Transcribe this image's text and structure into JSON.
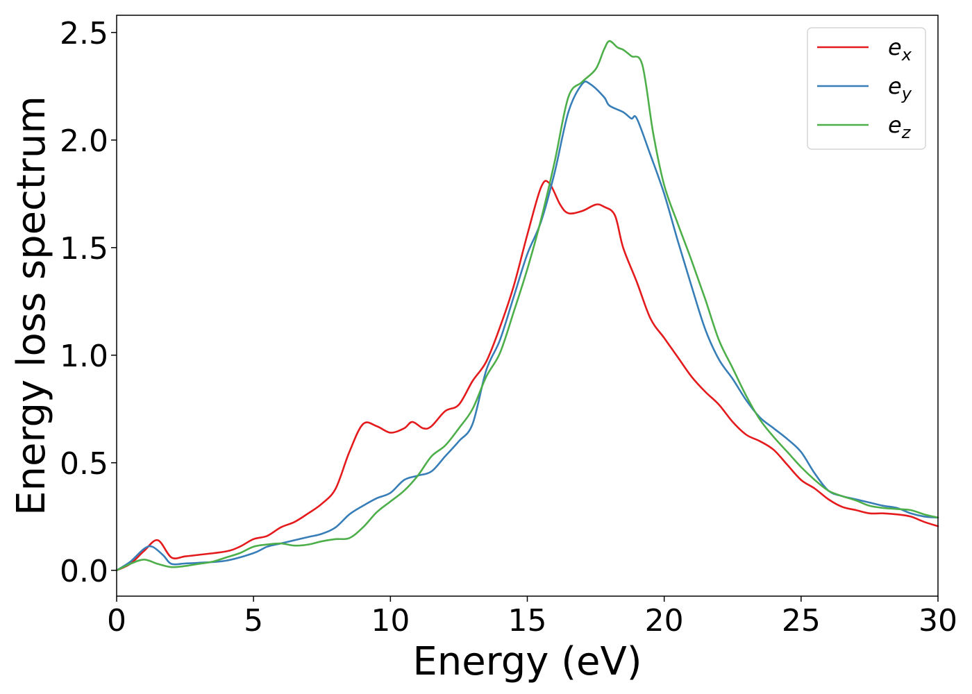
{
  "chart_data": {
    "type": "line",
    "title": "",
    "xlabel": "Energy (eV)",
    "ylabel": "Energy loss spectrum",
    "xlim": [
      0,
      30
    ],
    "ylim": [
      -0.12,
      2.58
    ],
    "xticks": [
      0,
      5,
      10,
      15,
      20,
      25,
      30
    ],
    "xtick_labels": [
      "0",
      "5",
      "10",
      "15",
      "20",
      "25",
      "30"
    ],
    "yticks": [
      0.0,
      0.5,
      1.0,
      1.5,
      2.0,
      2.5
    ],
    "ytick_labels": [
      "0.0",
      "0.5",
      "1.0",
      "1.5",
      "2.0",
      "2.5"
    ],
    "grid": false,
    "legend_position": "top-right",
    "series": [
      {
        "name": "e_x",
        "label_base": "e",
        "label_sub": "x",
        "color": "#e41a1c",
        "points": [
          [
            0,
            0.0
          ],
          [
            0.5,
            0.03
          ],
          [
            1.0,
            0.09
          ],
          [
            1.5,
            0.14
          ],
          [
            2.0,
            0.06
          ],
          [
            2.5,
            0.065
          ],
          [
            3.0,
            0.072
          ],
          [
            4.0,
            0.088
          ],
          [
            4.5,
            0.11
          ],
          [
            5.0,
            0.145
          ],
          [
            5.5,
            0.16
          ],
          [
            6.0,
            0.2
          ],
          [
            6.5,
            0.225
          ],
          [
            7.0,
            0.265
          ],
          [
            7.5,
            0.31
          ],
          [
            8.0,
            0.38
          ],
          [
            8.5,
            0.55
          ],
          [
            9.0,
            0.68
          ],
          [
            9.5,
            0.67
          ],
          [
            10.0,
            0.64
          ],
          [
            10.5,
            0.66
          ],
          [
            10.8,
            0.69
          ],
          [
            11.2,
            0.66
          ],
          [
            11.5,
            0.67
          ],
          [
            12.0,
            0.74
          ],
          [
            12.5,
            0.77
          ],
          [
            13.0,
            0.88
          ],
          [
            13.5,
            0.97
          ],
          [
            14.0,
            1.13
          ],
          [
            14.5,
            1.32
          ],
          [
            15.0,
            1.56
          ],
          [
            15.5,
            1.78
          ],
          [
            15.8,
            1.8
          ],
          [
            16.2,
            1.7
          ],
          [
            16.5,
            1.66
          ],
          [
            17.0,
            1.67
          ],
          [
            17.5,
            1.7
          ],
          [
            17.8,
            1.69
          ],
          [
            18.2,
            1.65
          ],
          [
            18.5,
            1.5
          ],
          [
            19.0,
            1.34
          ],
          [
            19.5,
            1.17
          ],
          [
            20.0,
            1.08
          ],
          [
            20.5,
            0.99
          ],
          [
            21.0,
            0.9
          ],
          [
            21.5,
            0.83
          ],
          [
            22.0,
            0.77
          ],
          [
            22.5,
            0.69
          ],
          [
            23.0,
            0.63
          ],
          [
            23.5,
            0.6
          ],
          [
            24.0,
            0.56
          ],
          [
            24.5,
            0.49
          ],
          [
            25.0,
            0.42
          ],
          [
            25.5,
            0.38
          ],
          [
            26.0,
            0.33
          ],
          [
            26.5,
            0.295
          ],
          [
            27.0,
            0.28
          ],
          [
            27.5,
            0.265
          ],
          [
            28.0,
            0.265
          ],
          [
            28.5,
            0.26
          ],
          [
            29.0,
            0.25
          ],
          [
            29.5,
            0.225
          ],
          [
            30.0,
            0.205
          ]
        ]
      },
      {
        "name": "e_y",
        "label_base": "e",
        "label_sub": "y",
        "color": "#377eb8",
        "points": [
          [
            0,
            0.0
          ],
          [
            0.5,
            0.04
          ],
          [
            1.0,
            0.1
          ],
          [
            1.3,
            0.11
          ],
          [
            1.7,
            0.07
          ],
          [
            2.0,
            0.03
          ],
          [
            2.5,
            0.032
          ],
          [
            3.0,
            0.035
          ],
          [
            4.0,
            0.045
          ],
          [
            5.0,
            0.08
          ],
          [
            5.5,
            0.11
          ],
          [
            6.0,
            0.125
          ],
          [
            6.5,
            0.14
          ],
          [
            7.0,
            0.155
          ],
          [
            7.5,
            0.17
          ],
          [
            8.0,
            0.2
          ],
          [
            8.5,
            0.26
          ],
          [
            9.0,
            0.3
          ],
          [
            9.5,
            0.335
          ],
          [
            10.0,
            0.36
          ],
          [
            10.5,
            0.42
          ],
          [
            11.0,
            0.44
          ],
          [
            11.5,
            0.46
          ],
          [
            12.0,
            0.53
          ],
          [
            12.5,
            0.6
          ],
          [
            13.0,
            0.68
          ],
          [
            13.5,
            0.93
          ],
          [
            14.0,
            1.07
          ],
          [
            14.5,
            1.27
          ],
          [
            15.0,
            1.47
          ],
          [
            15.5,
            1.62
          ],
          [
            16.0,
            1.85
          ],
          [
            16.5,
            2.13
          ],
          [
            17.0,
            2.26
          ],
          [
            17.3,
            2.26
          ],
          [
            17.8,
            2.2
          ],
          [
            18.0,
            2.16
          ],
          [
            18.5,
            2.13
          ],
          [
            18.8,
            2.1
          ],
          [
            19.0,
            2.1
          ],
          [
            19.5,
            1.93
          ],
          [
            20.0,
            1.75
          ],
          [
            20.5,
            1.53
          ],
          [
            21.0,
            1.32
          ],
          [
            21.5,
            1.12
          ],
          [
            22.0,
            0.98
          ],
          [
            22.5,
            0.89
          ],
          [
            23.0,
            0.79
          ],
          [
            23.5,
            0.71
          ],
          [
            24.0,
            0.66
          ],
          [
            24.5,
            0.61
          ],
          [
            25.0,
            0.55
          ],
          [
            25.5,
            0.45
          ],
          [
            26.0,
            0.37
          ],
          [
            26.5,
            0.345
          ],
          [
            27.0,
            0.33
          ],
          [
            27.5,
            0.315
          ],
          [
            28.0,
            0.3
          ],
          [
            28.5,
            0.29
          ],
          [
            29.0,
            0.265
          ],
          [
            29.5,
            0.25
          ],
          [
            30.0,
            0.245
          ]
        ]
      },
      {
        "name": "e_z",
        "label_base": "e",
        "label_sub": "z",
        "color": "#4daf4a",
        "points": [
          [
            0,
            0.0
          ],
          [
            0.5,
            0.03
          ],
          [
            1.0,
            0.05
          ],
          [
            1.5,
            0.03
          ],
          [
            2.0,
            0.015
          ],
          [
            2.5,
            0.02
          ],
          [
            3.0,
            0.03
          ],
          [
            3.5,
            0.04
          ],
          [
            4.0,
            0.06
          ],
          [
            4.5,
            0.08
          ],
          [
            5.0,
            0.11
          ],
          [
            5.5,
            0.12
          ],
          [
            6.0,
            0.125
          ],
          [
            6.5,
            0.115
          ],
          [
            7.0,
            0.12
          ],
          [
            7.5,
            0.135
          ],
          [
            8.0,
            0.145
          ],
          [
            8.5,
            0.15
          ],
          [
            9.0,
            0.2
          ],
          [
            9.5,
            0.27
          ],
          [
            10.0,
            0.32
          ],
          [
            10.5,
            0.37
          ],
          [
            11.0,
            0.44
          ],
          [
            11.5,
            0.53
          ],
          [
            12.0,
            0.58
          ],
          [
            12.5,
            0.66
          ],
          [
            13.0,
            0.75
          ],
          [
            13.5,
            0.9
          ],
          [
            14.0,
            1.01
          ],
          [
            14.5,
            1.2
          ],
          [
            15.0,
            1.4
          ],
          [
            15.5,
            1.63
          ],
          [
            16.0,
            1.9
          ],
          [
            16.5,
            2.2
          ],
          [
            17.0,
            2.27
          ],
          [
            17.5,
            2.33
          ],
          [
            17.8,
            2.42
          ],
          [
            18.0,
            2.46
          ],
          [
            18.3,
            2.43
          ],
          [
            18.5,
            2.42
          ],
          [
            18.8,
            2.39
          ],
          [
            19.2,
            2.35
          ],
          [
            19.6,
            2.03
          ],
          [
            20.0,
            1.79
          ],
          [
            20.5,
            1.61
          ],
          [
            21.0,
            1.44
          ],
          [
            21.5,
            1.26
          ],
          [
            22.0,
            1.07
          ],
          [
            22.5,
            0.94
          ],
          [
            23.0,
            0.81
          ],
          [
            23.5,
            0.7
          ],
          [
            24.0,
            0.62
          ],
          [
            24.5,
            0.55
          ],
          [
            25.0,
            0.48
          ],
          [
            25.5,
            0.42
          ],
          [
            26.0,
            0.37
          ],
          [
            26.5,
            0.345
          ],
          [
            27.0,
            0.325
          ],
          [
            27.5,
            0.3
          ],
          [
            28.0,
            0.29
          ],
          [
            28.5,
            0.285
          ],
          [
            29.0,
            0.28
          ],
          [
            29.5,
            0.26
          ],
          [
            30.0,
            0.245
          ]
        ]
      }
    ]
  }
}
